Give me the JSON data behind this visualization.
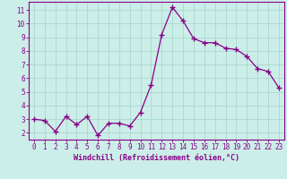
{
  "x": [
    0,
    1,
    2,
    3,
    4,
    5,
    6,
    7,
    8,
    9,
    10,
    11,
    12,
    13,
    14,
    15,
    16,
    17,
    18,
    19,
    20,
    21,
    22,
    23
  ],
  "y": [
    3.0,
    2.9,
    2.1,
    3.2,
    2.6,
    3.2,
    1.8,
    2.7,
    2.7,
    2.5,
    3.5,
    5.5,
    9.2,
    11.2,
    10.2,
    8.9,
    8.6,
    8.6,
    8.2,
    8.1,
    7.6,
    6.7,
    6.5,
    5.3
  ],
  "line_color": "#880088",
  "marker": "+",
  "marker_size": 4,
  "marker_lw": 1.0,
  "line_width": 0.9,
  "bg_color": "#cceee8",
  "grid_color": "#aad8d0",
  "xlabel": "Windchill (Refroidissement éolien,°C)",
  "xlim_lo": -0.5,
  "xlim_hi": 23.5,
  "ylim_lo": 1.5,
  "ylim_hi": 11.6,
  "yticks": [
    2,
    3,
    4,
    5,
    6,
    7,
    8,
    9,
    10,
    11
  ],
  "xticks": [
    0,
    1,
    2,
    3,
    4,
    5,
    6,
    7,
    8,
    9,
    10,
    11,
    12,
    13,
    14,
    15,
    16,
    17,
    18,
    19,
    20,
    21,
    22,
    23
  ],
  "tick_color": "#880088",
  "label_color": "#880088",
  "spine_color": "#880088",
  "tick_fontsize": 5.5,
  "xlabel_fontsize": 6.0
}
